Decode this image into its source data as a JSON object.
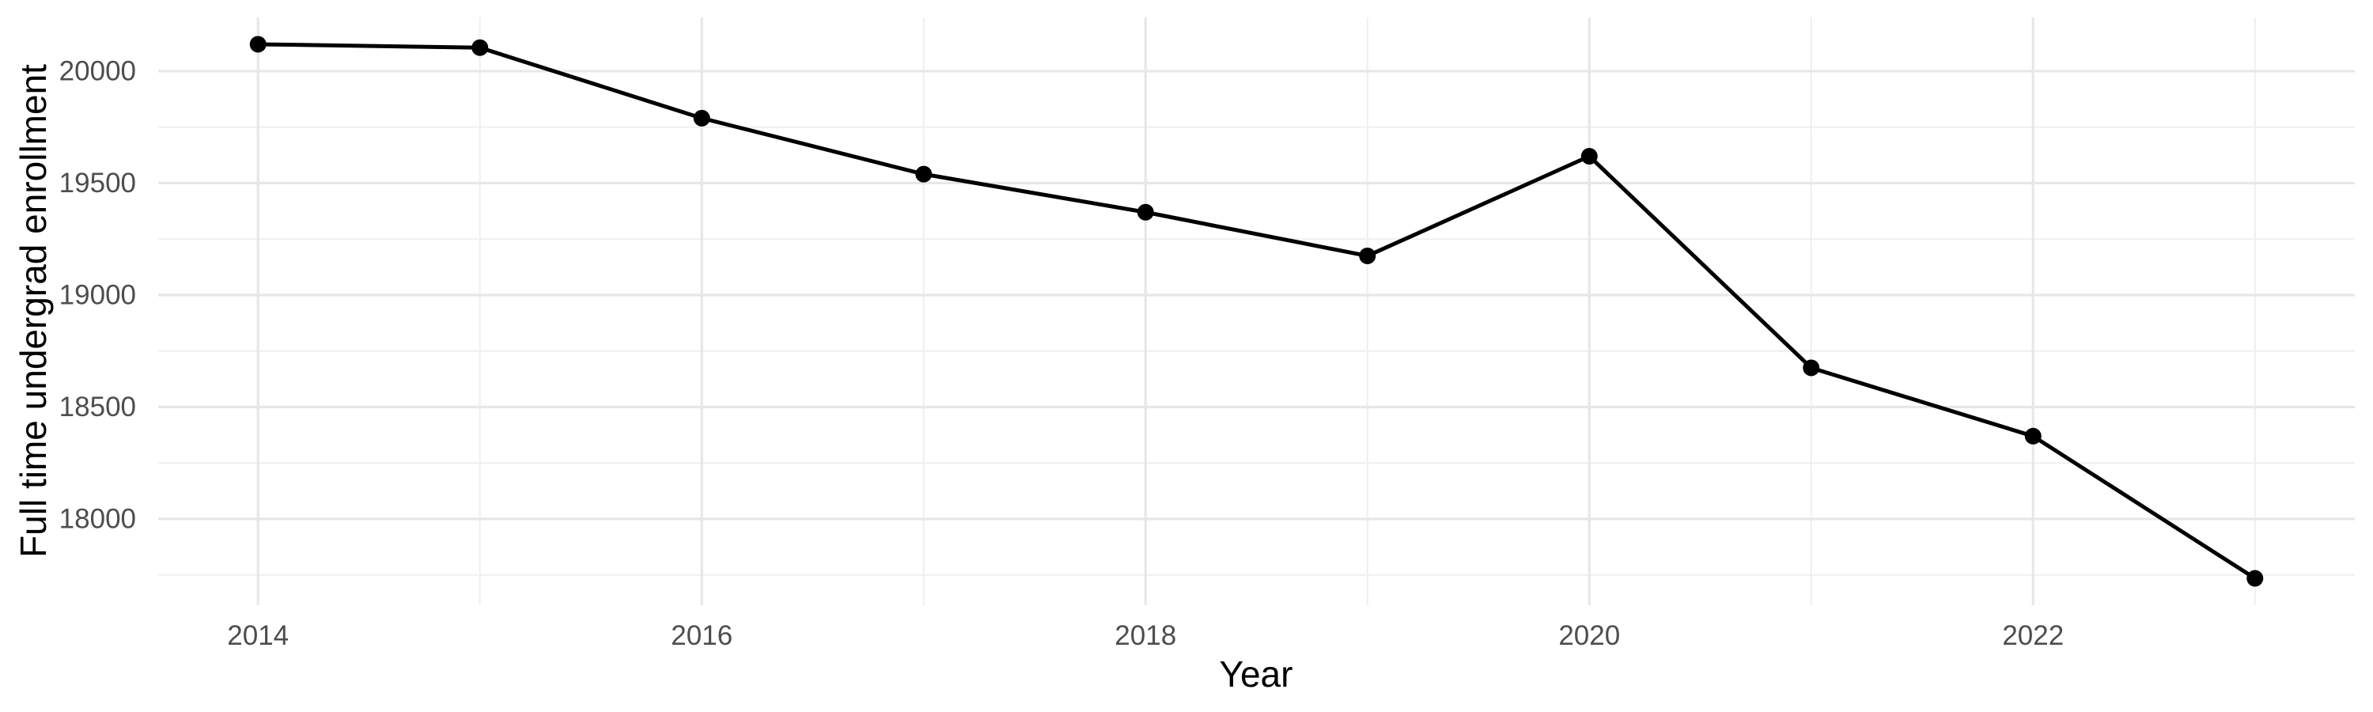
{
  "chart_data": {
    "type": "line",
    "title": "",
    "xlabel": "Year",
    "ylabel": "Full time undergrad enrollment",
    "series": [
      {
        "name": "Full time undergrad enrollment",
        "x": [
          2014,
          2015,
          2016,
          2017,
          2018,
          2019,
          2020,
          2021,
          2022,
          2023
        ],
        "values": [
          20120,
          20105,
          19790,
          19540,
          19370,
          19175,
          19620,
          18675,
          18370,
          17735
        ]
      }
    ],
    "xlim": [
      2013.55,
      2023.45
    ],
    "ylim": [
      17615,
      20240
    ],
    "x_major_breaks": [
      2014,
      2016,
      2018,
      2020,
      2022
    ],
    "x_minor_breaks": [
      2015,
      2017,
      2019,
      2021,
      2023
    ],
    "x_tick_labels": [
      "2014",
      "2016",
      "2018",
      "2020",
      "2022"
    ],
    "y_major_breaks": [
      18000,
      18500,
      19000,
      19500,
      20000
    ],
    "y_minor_breaks": [
      17750,
      18250,
      18750,
      19250,
      19750
    ],
    "y_tick_labels": [
      "18000",
      "18500",
      "19000",
      "19500",
      "20000"
    ],
    "grid": true,
    "legend": "none",
    "style": {
      "background": "#FFFFFF",
      "line_color": "#000000",
      "point_color": "#000000",
      "grid_major_color": "#E7E7E7",
      "grid_minor_color": "#EFEFEF",
      "tick_label_color": "#4D4D4D",
      "axis_title_color": "#000000"
    }
  }
}
